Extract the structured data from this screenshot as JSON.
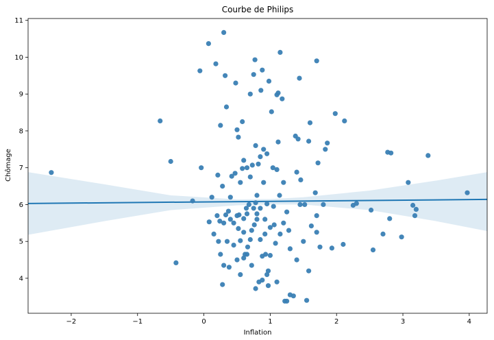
{
  "chart_data": {
    "type": "scatter",
    "title": "Courbe de Philips",
    "xlabel": "Inflation",
    "ylabel": "Chômage",
    "xlim": [
      -2.65,
      4.27
    ],
    "ylim": [
      3.05,
      11.05
    ],
    "x_ticks": [
      -2,
      -1,
      0,
      1,
      2,
      3,
      4
    ],
    "y_ticks": [
      4,
      5,
      6,
      7,
      8,
      9,
      10,
      11
    ],
    "x_tick_labels": [
      "−2",
      "−1",
      "0",
      "1",
      "2",
      "3",
      "4"
    ],
    "y_tick_labels": [
      "4",
      "5",
      "6",
      "7",
      "8",
      "9",
      "10",
      "11"
    ],
    "grid": false,
    "colors": {
      "points": "#3a7fb4",
      "line": "#1f77b4",
      "band": "#1f77b4"
    },
    "regression": {
      "x": [
        -2.65,
        4.27
      ],
      "y": [
        6.03,
        6.14
      ]
    },
    "confidence_band": {
      "x": [
        -2.65,
        -1.5,
        -0.5,
        0.5,
        1.0,
        1.5,
        2.5,
        3.5,
        4.27
      ],
      "lower": [
        5.18,
        5.55,
        5.85,
        5.98,
        6.0,
        6.0,
        5.85,
        5.55,
        5.28
      ],
      "upper": [
        6.88,
        6.55,
        6.25,
        6.14,
        6.15,
        6.2,
        6.38,
        6.65,
        6.88
      ]
    },
    "points": [
      {
        "x": -2.3,
        "y": 6.87
      },
      {
        "x": -0.66,
        "y": 8.27
      },
      {
        "x": -0.5,
        "y": 7.17
      },
      {
        "x": -0.42,
        "y": 4.42
      },
      {
        "x": -0.17,
        "y": 6.1
      },
      {
        "x": -0.06,
        "y": 9.63
      },
      {
        "x": -0.04,
        "y": 7.0
      },
      {
        "x": 0.07,
        "y": 10.37
      },
      {
        "x": 0.08,
        "y": 5.53
      },
      {
        "x": 0.12,
        "y": 6.2
      },
      {
        "x": 0.18,
        "y": 9.82
      },
      {
        "x": 0.21,
        "y": 6.8
      },
      {
        "x": 0.15,
        "y": 5.2
      },
      {
        "x": 0.22,
        "y": 5.0
      },
      {
        "x": 0.24,
        "y": 5.55
      },
      {
        "x": 0.25,
        "y": 8.15
      },
      {
        "x": 0.28,
        "y": 3.83
      },
      {
        "x": 0.3,
        "y": 10.67
      },
      {
        "x": 0.32,
        "y": 9.5
      },
      {
        "x": 0.34,
        "y": 8.65
      },
      {
        "x": 0.33,
        "y": 5.72
      },
      {
        "x": 0.3,
        "y": 4.35
      },
      {
        "x": 0.37,
        "y": 5.82
      },
      {
        "x": 0.38,
        "y": 4.3
      },
      {
        "x": 0.42,
        "y": 6.77
      },
      {
        "x": 0.45,
        "y": 5.5
      },
      {
        "x": 0.47,
        "y": 6.85
      },
      {
        "x": 0.48,
        "y": 9.3
      },
      {
        "x": 0.5,
        "y": 8.03
      },
      {
        "x": 0.52,
        "y": 7.83
      },
      {
        "x": 0.53,
        "y": 5.72
      },
      {
        "x": 0.55,
        "y": 5.02
      },
      {
        "x": 0.58,
        "y": 6.98
      },
      {
        "x": 0.6,
        "y": 7.2
      },
      {
        "x": 0.6,
        "y": 5.62
      },
      {
        "x": 0.62,
        "y": 4.65
      },
      {
        "x": 0.64,
        "y": 5.9
      },
      {
        "x": 0.66,
        "y": 4.85
      },
      {
        "x": 0.68,
        "y": 6.0
      },
      {
        "x": 0.7,
        "y": 9.0
      },
      {
        "x": 0.72,
        "y": 5.3
      },
      {
        "x": 0.73,
        "y": 7.07
      },
      {
        "x": 0.75,
        "y": 9.53
      },
      {
        "x": 0.76,
        "y": 5.45
      },
      {
        "x": 0.77,
        "y": 9.93
      },
      {
        "x": 0.78,
        "y": 7.6
      },
      {
        "x": 0.8,
        "y": 5.75
      },
      {
        "x": 0.82,
        "y": 7.1
      },
      {
        "x": 0.83,
        "y": 3.9
      },
      {
        "x": 0.85,
        "y": 5.9
      },
      {
        "x": 0.86,
        "y": 9.1
      },
      {
        "x": 0.88,
        "y": 9.65
      },
      {
        "x": 0.9,
        "y": 7.5
      },
      {
        "x": 0.92,
        "y": 5.2
      },
      {
        "x": 0.93,
        "y": 4.65
      },
      {
        "x": 0.95,
        "y": 7.38
      },
      {
        "x": 0.97,
        "y": 3.8
      },
      {
        "x": 0.98,
        "y": 9.35
      },
      {
        "x": 1.0,
        "y": 5.38
      },
      {
        "x": 1.02,
        "y": 8.52
      },
      {
        "x": 1.04,
        "y": 7.0
      },
      {
        "x": 1.06,
        "y": 5.45
      },
      {
        "x": 1.08,
        "y": 4.95
      },
      {
        "x": 1.1,
        "y": 8.98
      },
      {
        "x": 1.12,
        "y": 9.03
      },
      {
        "x": 1.14,
        "y": 6.25
      },
      {
        "x": 1.15,
        "y": 10.13
      },
      {
        "x": 1.18,
        "y": 8.87
      },
      {
        "x": 1.2,
        "y": 6.6
      },
      {
        "x": 1.22,
        "y": 3.38
      },
      {
        "x": 1.25,
        "y": 3.38
      },
      {
        "x": 1.28,
        "y": 5.3
      },
      {
        "x": 1.35,
        "y": 3.52
      },
      {
        "x": 1.38,
        "y": 7.86
      },
      {
        "x": 1.4,
        "y": 6.88
      },
      {
        "x": 1.42,
        "y": 7.78
      },
      {
        "x": 1.44,
        "y": 9.43
      },
      {
        "x": 1.46,
        "y": 6.67
      },
      {
        "x": 1.5,
        "y": 5.0
      },
      {
        "x": 1.52,
        "y": 6.0
      },
      {
        "x": 1.55,
        "y": 3.4
      },
      {
        "x": 1.58,
        "y": 7.72
      },
      {
        "x": 1.6,
        "y": 8.22
      },
      {
        "x": 1.62,
        "y": 5.42
      },
      {
        "x": 1.68,
        "y": 6.32
      },
      {
        "x": 1.7,
        "y": 9.9
      },
      {
        "x": 1.72,
        "y": 7.13
      },
      {
        "x": 1.75,
        "y": 4.85
      },
      {
        "x": 1.83,
        "y": 7.5
      },
      {
        "x": 1.86,
        "y": 7.67
      },
      {
        "x": 1.93,
        "y": 4.82
      },
      {
        "x": 1.98,
        "y": 8.47
      },
      {
        "x": 2.1,
        "y": 4.92
      },
      {
        "x": 2.12,
        "y": 8.27
      },
      {
        "x": 2.25,
        "y": 5.98
      },
      {
        "x": 2.3,
        "y": 6.03
      },
      {
        "x": 2.52,
        "y": 5.85
      },
      {
        "x": 2.55,
        "y": 4.77
      },
      {
        "x": 2.7,
        "y": 5.2
      },
      {
        "x": 2.77,
        "y": 7.42
      },
      {
        "x": 2.82,
        "y": 7.4
      },
      {
        "x": 2.8,
        "y": 5.62
      },
      {
        "x": 2.98,
        "y": 5.12
      },
      {
        "x": 3.08,
        "y": 6.6
      },
      {
        "x": 3.15,
        "y": 5.98
      },
      {
        "x": 3.2,
        "y": 5.87
      },
      {
        "x": 3.18,
        "y": 5.7
      },
      {
        "x": 3.38,
        "y": 7.33
      },
      {
        "x": 3.97,
        "y": 6.32
      },
      {
        "x": 0.55,
        "y": 4.1
      },
      {
        "x": 0.65,
        "y": 4.65
      },
      {
        "x": 0.72,
        "y": 4.35
      },
      {
        "x": 0.78,
        "y": 3.72
      },
      {
        "x": 0.88,
        "y": 3.95
      },
      {
        "x": 0.95,
        "y": 4.1
      },
      {
        "x": 1.1,
        "y": 3.9
      },
      {
        "x": 1.0,
        "y": 4.62
      },
      {
        "x": 0.5,
        "y": 4.5
      },
      {
        "x": 0.45,
        "y": 4.9
      },
      {
        "x": 0.6,
        "y": 5.25
      },
      {
        "x": 0.85,
        "y": 5.05
      },
      {
        "x": 1.15,
        "y": 5.2
      },
      {
        "x": 1.3,
        "y": 4.8
      },
      {
        "x": 1.7,
        "y": 5.7
      },
      {
        "x": 1.7,
        "y": 5.25
      },
      {
        "x": 0.4,
        "y": 6.2
      },
      {
        "x": 0.55,
        "y": 6.6
      },
      {
        "x": 0.7,
        "y": 6.75
      },
      {
        "x": 0.8,
        "y": 6.25
      },
      {
        "x": 0.9,
        "y": 6.6
      },
      {
        "x": 1.2,
        "y": 5.5
      },
      {
        "x": 0.25,
        "y": 4.65
      },
      {
        "x": 0.35,
        "y": 5.0
      },
      {
        "x": 0.65,
        "y": 5.75
      },
      {
        "x": 0.92,
        "y": 5.6
      },
      {
        "x": 1.05,
        "y": 5.95
      },
      {
        "x": 0.75,
        "y": 5.9
      },
      {
        "x": 0.97,
        "y": 4.2
      },
      {
        "x": 1.4,
        "y": 4.5
      },
      {
        "x": 1.58,
        "y": 4.2
      },
      {
        "x": 0.4,
        "y": 5.6
      },
      {
        "x": 0.6,
        "y": 4.55
      },
      {
        "x": 0.7,
        "y": 5.05
      },
      {
        "x": 1.8,
        "y": 6.0
      },
      {
        "x": 1.45,
        "y": 6.0
      },
      {
        "x": 0.52,
        "y": 5.35
      },
      {
        "x": 0.8,
        "y": 5.6
      },
      {
        "x": 0.95,
        "y": 6.02
      },
      {
        "x": 1.25,
        "y": 5.8
      },
      {
        "x": 0.85,
        "y": 7.3
      },
      {
        "x": 0.65,
        "y": 7.0
      },
      {
        "x": 0.58,
        "y": 8.25
      },
      {
        "x": 0.3,
        "y": 5.5
      },
      {
        "x": 0.2,
        "y": 5.7
      },
      {
        "x": 1.1,
        "y": 6.95
      },
      {
        "x": 0.78,
        "y": 6.05
      },
      {
        "x": 0.5,
        "y": 5.7
      },
      {
        "x": 1.3,
        "y": 3.55
      },
      {
        "x": 0.28,
        "y": 6.5
      },
      {
        "x": 0.88,
        "y": 4.6
      },
      {
        "x": 1.12,
        "y": 7.7
      }
    ]
  }
}
